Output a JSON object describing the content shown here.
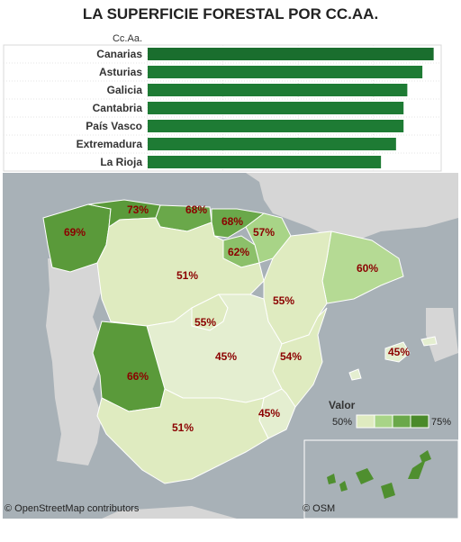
{
  "title": "LA SUPERFICIE FORESTAL POR CC.AA.",
  "chart_data": {
    "type": "bar",
    "orientation": "horizontal",
    "header": "Cc.Aa.",
    "categories": [
      "Canarias",
      "Asturias",
      "Galicia",
      "Cantabria",
      "País Vasco",
      "Extremadura",
      "La Rioja"
    ],
    "values": [
      76,
      73,
      69,
      68,
      68,
      66,
      62
    ],
    "bar_color": "#1e7b34"
  },
  "map": {
    "regions": [
      {
        "name": "Galicia",
        "label": "69%",
        "value": 69,
        "color": "#5a9a3a"
      },
      {
        "name": "Asturias",
        "label": "73%",
        "value": 73,
        "color": "#5a9a3a"
      },
      {
        "name": "Cantabria",
        "label": "68%",
        "value": 68,
        "color": "#6aa84a"
      },
      {
        "name": "País Vasco",
        "label": "68%",
        "value": 68,
        "color": "#6aa84a"
      },
      {
        "name": "Navarra",
        "label": "57%",
        "value": 57,
        "color": "#a8d487"
      },
      {
        "name": "La Rioja",
        "label": "62%",
        "value": 62,
        "color": "#8cc06a"
      },
      {
        "name": "Castilla y León",
        "label": "51%",
        "value": 51,
        "color": "#dfebc0"
      },
      {
        "name": "Cataluña",
        "label": "60%",
        "value": 60,
        "color": "#b5da94"
      },
      {
        "name": "Aragón",
        "label": "55%",
        "value": 55,
        "color": "#dfebc0"
      },
      {
        "name": "Madrid",
        "label": "55%",
        "value": 55,
        "color": "#dfebc0"
      },
      {
        "name": "Castilla-La Mancha",
        "label": "45%",
        "value": 45,
        "color": "#e4eed0"
      },
      {
        "name": "Extremadura",
        "label": "66%",
        "value": 66,
        "color": "#5a9a3a"
      },
      {
        "name": "Comunidad Valenciana",
        "label": "54%",
        "value": 54,
        "color": "#dfebc0"
      },
      {
        "name": "Baleares",
        "label": "45%",
        "value": 45,
        "color": "#e4eed0"
      },
      {
        "name": "Murcia",
        "label": "45%",
        "value": 45,
        "color": "#e4eed0"
      },
      {
        "name": "Andalucía",
        "label": "51%",
        "value": 51,
        "color": "#dfebc0"
      }
    ],
    "legend": {
      "title": "Valor",
      "min_label": "50%",
      "max_label": "75%",
      "swatches": [
        "#dfebc0",
        "#a8d487",
        "#6aa84a",
        "#4a8a2a"
      ]
    },
    "attribution_left": "© OpenStreetMap contributors",
    "attribution_right": "© OSM"
  }
}
